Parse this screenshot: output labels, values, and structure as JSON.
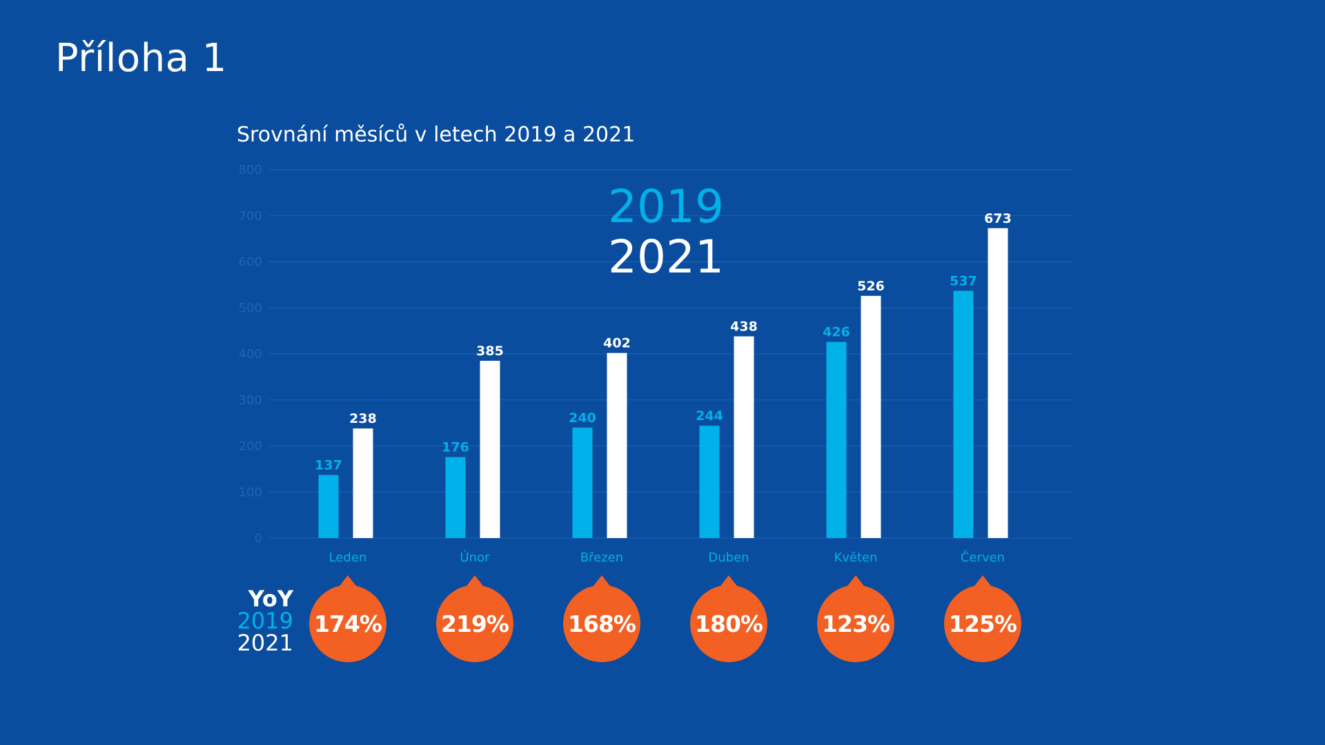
{
  "page": {
    "title": "Příloha 1"
  },
  "colors": {
    "background": "#0a4c9e",
    "series2019": "#00b2e9",
    "series2021": "#ffffff",
    "bubble": "#f26023",
    "axis": "#1b66b8"
  },
  "chart_data": {
    "type": "bar",
    "title": "Srovnání měsíců v letech 2019 a 2021",
    "categories": [
      "Leden",
      "Únor",
      "Březen",
      "Duben",
      "Květen",
      "Červen"
    ],
    "series": [
      {
        "name": "2019",
        "values": [
          137,
          176,
          240,
          244,
          426,
          537
        ]
      },
      {
        "name": "2021",
        "values": [
          238,
          385,
          402,
          438,
          526,
          673
        ]
      }
    ],
    "ylim": [
      0,
      800
    ],
    "yticks": [
      0,
      100,
      200,
      300,
      400,
      500,
      600,
      700,
      800
    ],
    "grid": true,
    "legend": [
      "2019",
      "2021"
    ],
    "legend_position": "top-center"
  },
  "yoy": {
    "label": "YoY",
    "year1": "2019",
    "year2": "2021",
    "values": [
      "174%",
      "219%",
      "168%",
      "180%",
      "123%",
      "125%"
    ]
  }
}
